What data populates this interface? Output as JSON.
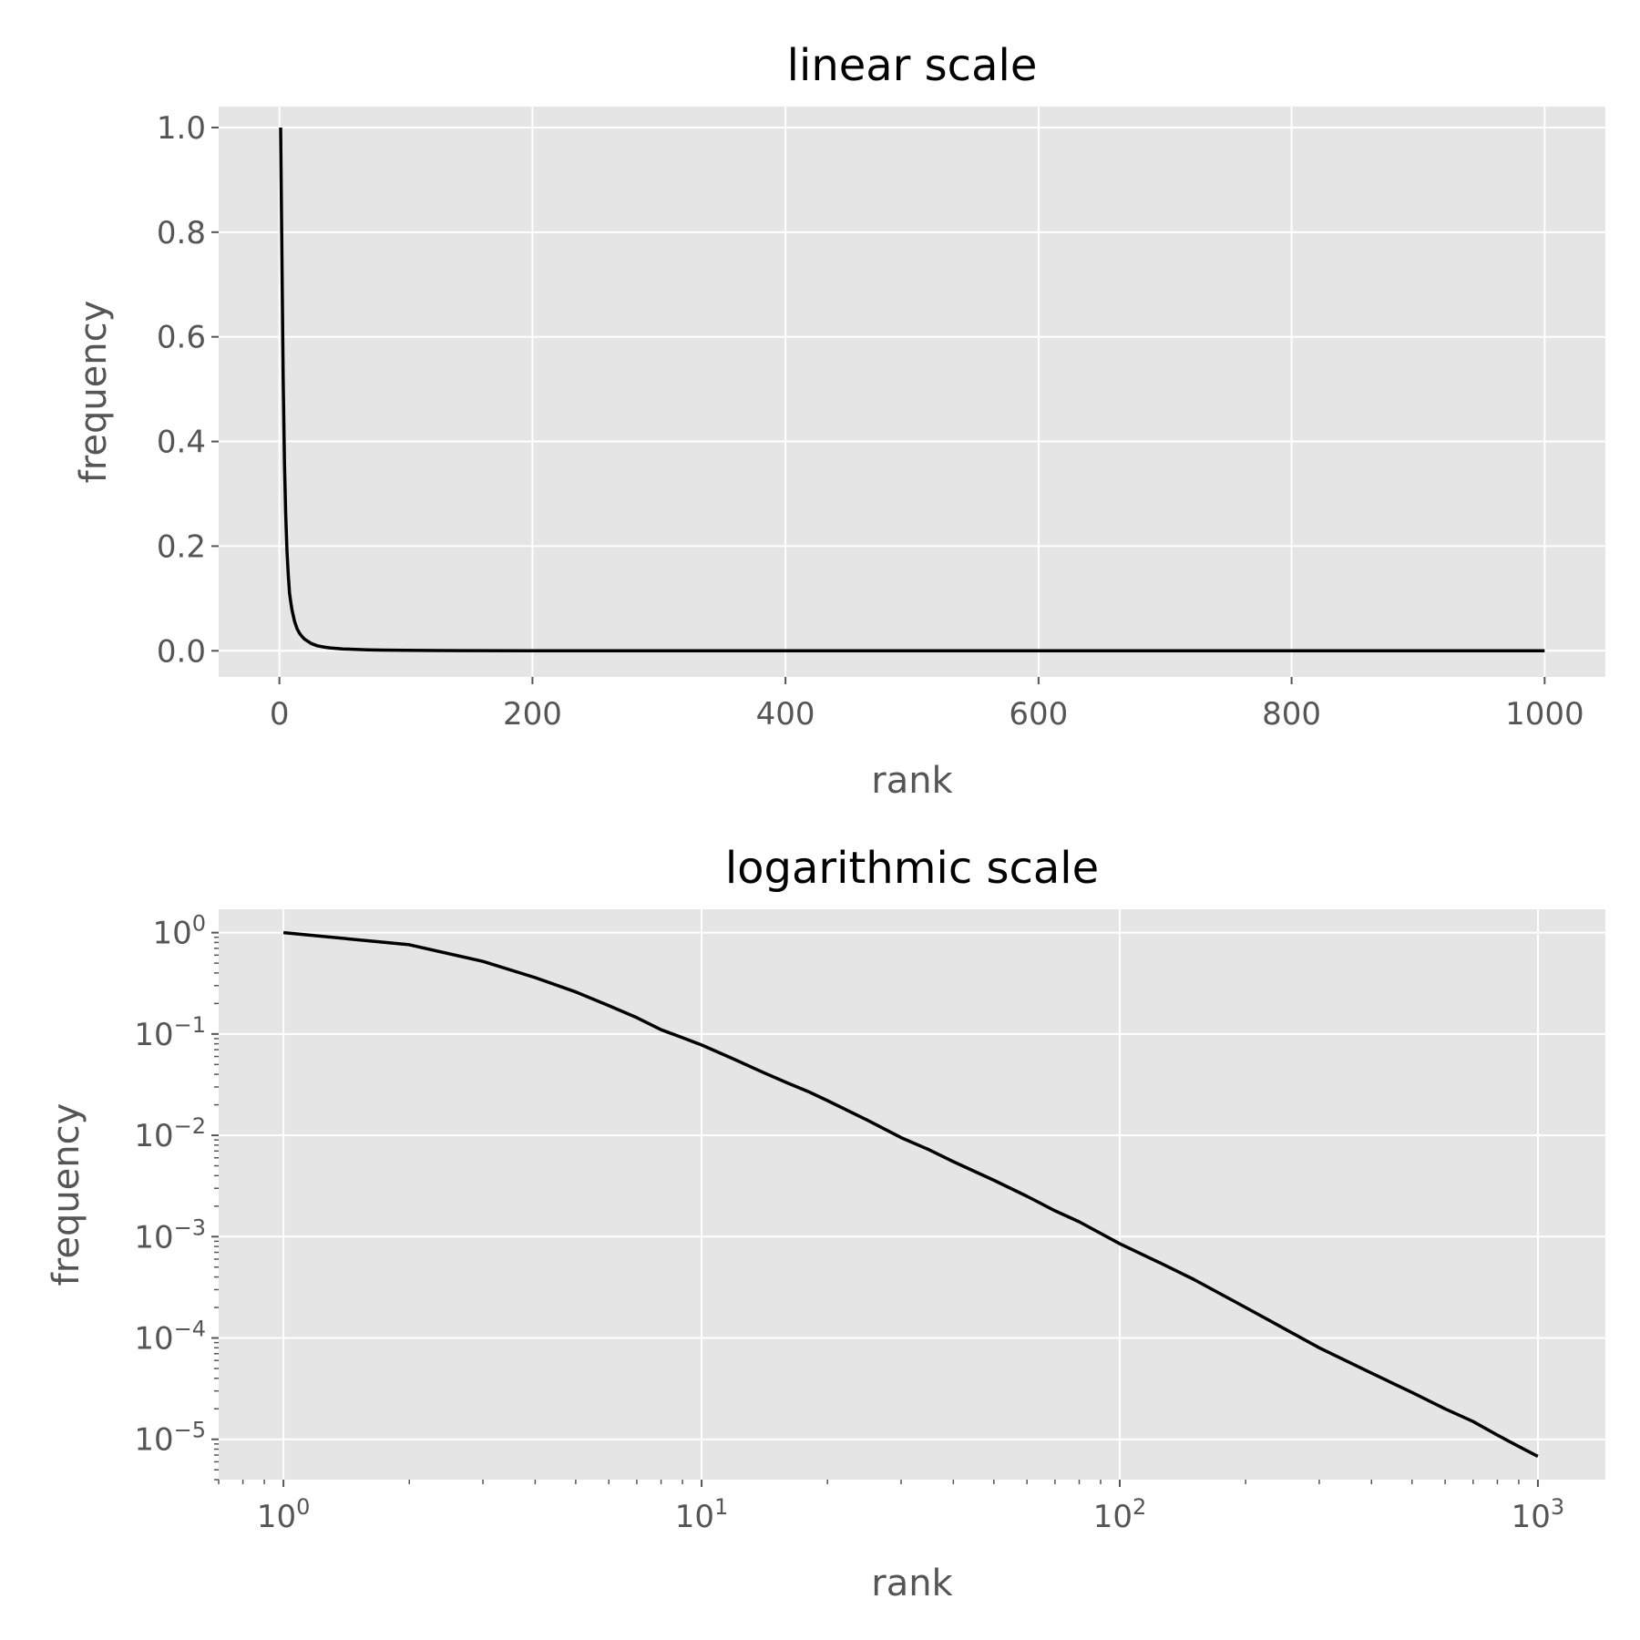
{
  "chart_data": [
    {
      "type": "line",
      "title": "linear scale",
      "xlabel": "rank",
      "ylabel": "frequency",
      "xscale": "linear",
      "yscale": "linear",
      "xlim": [
        -48,
        1048
      ],
      "ylim": [
        -0.05,
        1.04
      ],
      "xticks": [
        0,
        200,
        400,
        600,
        800,
        1000
      ],
      "xtick_labels": [
        "0",
        "200",
        "400",
        "600",
        "800",
        "1000"
      ],
      "yticks": [
        0.0,
        0.2,
        0.4,
        0.6,
        0.8,
        1.0
      ],
      "ytick_labels": [
        "0.0",
        "0.2",
        "0.4",
        "0.6",
        "0.8",
        "1.0"
      ],
      "grid": true,
      "series_color": "#000000",
      "x": [
        1,
        2,
        3,
        4,
        5,
        6,
        7,
        8,
        9,
        10,
        12,
        14,
        16,
        18,
        20,
        25,
        30,
        35,
        40,
        50,
        60,
        70,
        80,
        100,
        125,
        150,
        200,
        300,
        400,
        500,
        600,
        700,
        800,
        900,
        1000
      ],
      "y": [
        1.0,
        0.76,
        0.52,
        0.36,
        0.26,
        0.19,
        0.145,
        0.11,
        0.092,
        0.078,
        0.056,
        0.042,
        0.033,
        0.027,
        0.022,
        0.014,
        0.0095,
        0.0072,
        0.0055,
        0.0036,
        0.0025,
        0.0018,
        0.0014,
        0.00085,
        0.00055,
        0.00038,
        0.0002,
        8e-05,
        4.5e-05,
        2.9e-05,
        2e-05,
        1.5e-05,
        1.1e-05,
        8.5e-06,
        6.8e-06
      ]
    },
    {
      "type": "line",
      "title": "logarithmic scale",
      "xlabel": "rank",
      "ylabel": "frequency",
      "xscale": "log",
      "yscale": "log",
      "xlim": [
        0.7,
        1450
      ],
      "ylim": [
        4e-06,
        1.7
      ],
      "xticks": [
        1,
        10,
        100,
        1000
      ],
      "xtick_labels": [
        {
          "base": "10",
          "exp": "0"
        },
        {
          "base": "10",
          "exp": "1"
        },
        {
          "base": "10",
          "exp": "2"
        },
        {
          "base": "10",
          "exp": "3"
        }
      ],
      "yticks": [
        1e-05,
        0.0001,
        0.001,
        0.01,
        0.1,
        1
      ],
      "ytick_labels": [
        {
          "base": "10",
          "exp": "−5"
        },
        {
          "base": "10",
          "exp": "−4"
        },
        {
          "base": "10",
          "exp": "−3"
        },
        {
          "base": "10",
          "exp": "−2"
        },
        {
          "base": "10",
          "exp": "−1"
        },
        {
          "base": "10",
          "exp": "0"
        }
      ],
      "grid": true,
      "series_color": "#000000",
      "x": [
        1,
        2,
        3,
        4,
        5,
        6,
        7,
        8,
        9,
        10,
        12,
        14,
        16,
        18,
        20,
        25,
        30,
        35,
        40,
        50,
        60,
        70,
        80,
        100,
        125,
        150,
        200,
        300,
        400,
        500,
        600,
        700,
        800,
        900,
        1000
      ],
      "y": [
        1.0,
        0.76,
        0.52,
        0.36,
        0.26,
        0.19,
        0.145,
        0.11,
        0.092,
        0.078,
        0.056,
        0.042,
        0.033,
        0.027,
        0.022,
        0.014,
        0.0095,
        0.0072,
        0.0055,
        0.0036,
        0.0025,
        0.0018,
        0.0014,
        0.00085,
        0.00055,
        0.00038,
        0.0002,
        8e-05,
        4.5e-05,
        2.9e-05,
        2e-05,
        1.5e-05,
        1.1e-05,
        8.5e-06,
        6.8e-06
      ]
    }
  ]
}
